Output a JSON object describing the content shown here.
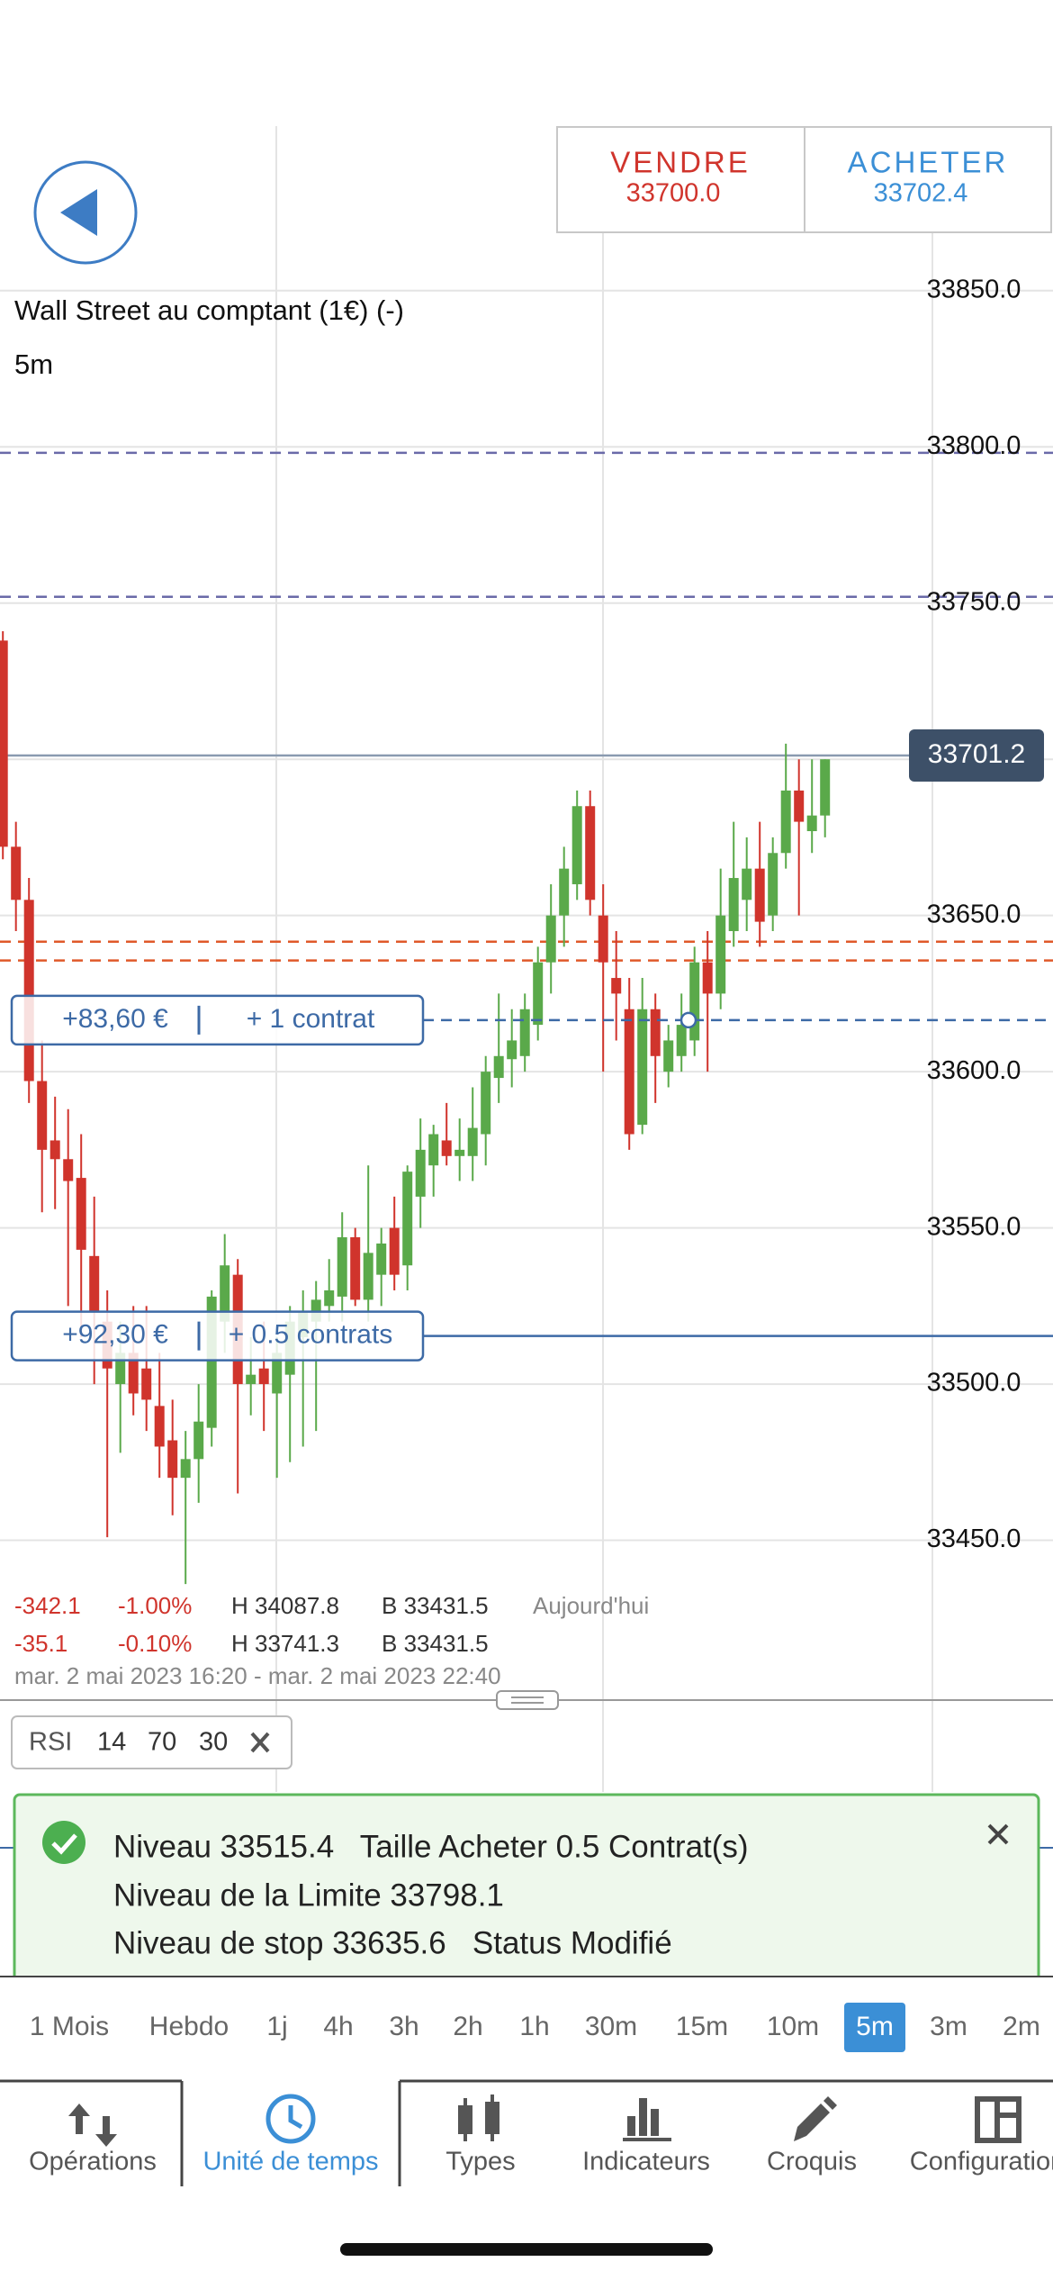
{
  "header": {
    "sell": {
      "label": "VENDRE",
      "price": "33700.0"
    },
    "buy": {
      "label": "ACHETER",
      "price": "33702.4"
    }
  },
  "instrument": {
    "name": "Wall Street au comptant (1€) (-)",
    "timeframe": "5m"
  },
  "chart_data": {
    "type": "candlestick",
    "open": [
      33738,
      33672,
      33655,
      33597,
      33578,
      33572,
      33566,
      33541,
      33520,
      33500,
      33510,
      33505,
      33493,
      33482,
      33470,
      33476,
      33486,
      33520,
      33535,
      33500,
      33505,
      33497,
      33503,
      33515,
      33520,
      33525,
      33528,
      33547,
      33527,
      33535,
      33550,
      33538,
      33560,
      33570,
      33578,
      33573,
      33573,
      33580,
      33598,
      33604,
      33605,
      33615,
      33635,
      33650,
      33660,
      33685,
      33650,
      33630,
      33620,
      33583,
      33620,
      33600,
      33605,
      33610,
      33635,
      33625,
      33645,
      33655,
      33665,
      33650,
      33670,
      33690,
      33677,
      33682
    ],
    "high": [
      33741,
      33680,
      33662,
      33610,
      33592,
      33588,
      33580,
      33560,
      33530,
      33520,
      33525,
      33525,
      33510,
      33495,
      33485,
      33500,
      33530,
      33548,
      33540,
      33515,
      33520,
      33515,
      33525,
      33530,
      33533,
      33540,
      33555,
      33550,
      33570,
      33550,
      33560,
      33570,
      33585,
      33583,
      33590,
      33585,
      33595,
      33605,
      33625,
      33620,
      33625,
      33640,
      33660,
      33672,
      33690,
      33690,
      33660,
      33645,
      33630,
      33630,
      33625,
      33615,
      33625,
      33640,
      33645,
      33665,
      33680,
      33675,
      33680,
      33675,
      33705,
      33700,
      33700,
      33700
    ],
    "low": [
      33668,
      33645,
      33590,
      33555,
      33556,
      33525,
      33515,
      33500,
      33451,
      33478,
      33490,
      33485,
      33470,
      33458,
      33436,
      33462,
      33480,
      33510,
      33465,
      33490,
      33485,
      33470,
      33475,
      33480,
      33485,
      33520,
      33520,
      33525,
      33520,
      33525,
      33530,
      33530,
      33550,
      33560,
      33570,
      33565,
      33565,
      33570,
      33590,
      33595,
      33600,
      33610,
      33625,
      33640,
      33655,
      33650,
      33600,
      33610,
      33575,
      33580,
      33590,
      33595,
      33600,
      33605,
      33600,
      33620,
      33640,
      33645,
      33640,
      33645,
      33665,
      33650,
      33670,
      33675
    ],
    "close": [
      33672,
      33655,
      33597,
      33575,
      33572,
      33565,
      33543,
      33523,
      33505,
      33510,
      33497,
      33495,
      33480,
      33470,
      33476,
      33488,
      33528,
      33538,
      33500,
      33503,
      33500,
      33510,
      33520,
      33523,
      33527,
      33530,
      33547,
      33527,
      33542,
      33545,
      33535,
      33568,
      33575,
      33580,
      33573,
      33575,
      33582,
      33600,
      33605,
      33610,
      33620,
      33635,
      33650,
      33665,
      33685,
      33655,
      33635,
      33625,
      33580,
      33620,
      33605,
      33610,
      33615,
      33635,
      33625,
      33650,
      33662,
      33665,
      33648,
      33670,
      33690,
      33680,
      33682,
      33700
    ],
    "up_color": "#5aa94a",
    "down_color": "#d0342c",
    "ylim": [
      33400,
      33902
    ],
    "yticks": [
      {
        "value": 33450,
        "label": "33450.0"
      },
      {
        "value": 33500,
        "label": "33500.0"
      },
      {
        "value": 33550,
        "label": "33550.0"
      },
      {
        "value": 33600,
        "label": "33600.0"
      },
      {
        "value": 33650,
        "label": "33650.0"
      },
      {
        "value": 33700,
        "label": "33700.0"
      },
      {
        "value": 33750,
        "label": "33750.0"
      },
      {
        "value": 33800,
        "label": "33800.0"
      },
      {
        "value": 33850,
        "label": "33850.0"
      }
    ],
    "grid": true,
    "current_price": 33701.2,
    "order_lines": [
      {
        "value": 33798.1,
        "color": "#6a6aa8",
        "style": "dashed"
      },
      {
        "value": 33752,
        "color": "#6a6aa8",
        "style": "dashed"
      },
      {
        "value": 33641.6,
        "color": "#e0592a",
        "style": "dashed"
      },
      {
        "value": 33635.6,
        "color": "#e0592a",
        "style": "dashed"
      }
    ],
    "positions": [
      {
        "pnl": "+83,60 €",
        "size": "+ 1 contrat",
        "level": 33616.5,
        "style": "dashed"
      },
      {
        "pnl": "+92,30 €",
        "size": "+ 0.5 contrats",
        "level": 33515.4,
        "style": "solid"
      }
    ]
  },
  "stats": [
    {
      "change": "-342.1",
      "percent": "-1.00%",
      "high": "H 34087.8",
      "low": "B 33431.5",
      "period": "Aujourd'hui"
    },
    {
      "change": "-35.1",
      "percent": "-0.10%",
      "high": "H 33741.3",
      "low": "B 33431.5"
    }
  ],
  "date_range": "mar. 2 mai 2023 16:20 - mar. 2 mai 2023 22:40",
  "indicator": {
    "name": "RSI",
    "params": [
      "14",
      "70",
      "30"
    ]
  },
  "notification": {
    "lines": [
      "Niveau 33515.4   Taille Acheter 0.5 Contrat(s)",
      "Niveau de la Limite 33798.1",
      "Niveau de stop 33635.6   Status Modifié"
    ]
  },
  "timeframes": [
    "1 Mois",
    "Hebdo",
    "1j",
    "4h",
    "3h",
    "2h",
    "1h",
    "30m",
    "15m",
    "10m",
    "5m",
    "3m",
    "2m"
  ],
  "selected_timeframe": 10,
  "tabs": [
    "Opérations",
    "Unité de temps",
    "Types",
    "Indicateurs",
    "Croquis",
    "Configuration"
  ],
  "selected_tab": 1
}
